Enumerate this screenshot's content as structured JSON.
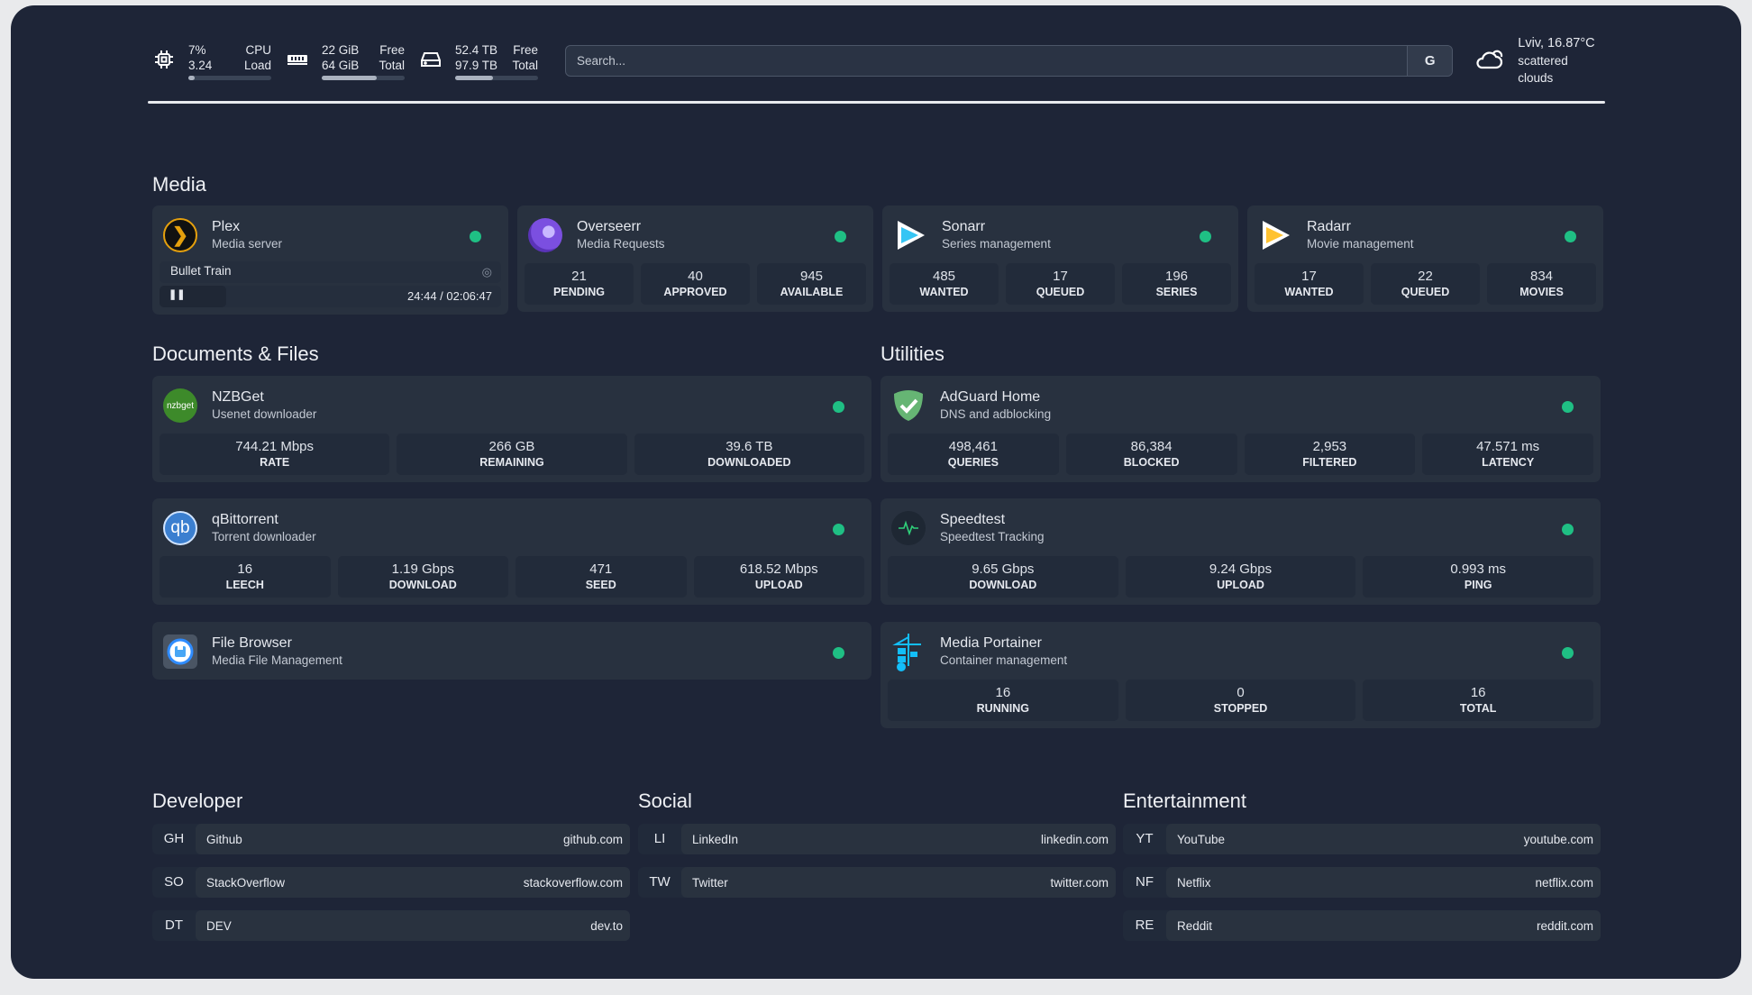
{
  "header": {
    "cpu": {
      "value": "7%",
      "load": "3.24",
      "label1": "CPU",
      "label2": "Load",
      "percent": 7
    },
    "memory": {
      "value": "22 GiB",
      "total": "64 GiB",
      "label1": "Free",
      "label2": "Total",
      "percent": 66
    },
    "disk": {
      "value": "52.4 TB",
      "total": "97.9 TB",
      "label1": "Free",
      "label2": "Total",
      "percent": 46
    },
    "search": {
      "placeholder": "Search...",
      "button": "G"
    },
    "weather": {
      "location": "Lviv, 16.87°C",
      "condition": "scattered clouds"
    }
  },
  "sections": {
    "media": "Media",
    "docs": "Documents & Files",
    "utilities": "Utilities",
    "developer": "Developer",
    "social": "Social",
    "entertainment": "Entertainment"
  },
  "media": [
    {
      "name": "Plex",
      "sub": "Media server",
      "now_playing": "Bullet Train",
      "time": "24:44 / 02:06:47",
      "progress_percent": 19.5
    },
    {
      "name": "Overseerr",
      "sub": "Media Requests",
      "stats": [
        {
          "v": "21",
          "k": "PENDING"
        },
        {
          "v": "40",
          "k": "APPROVED"
        },
        {
          "v": "945",
          "k": "AVAILABLE"
        }
      ]
    },
    {
      "name": "Sonarr",
      "sub": "Series management",
      "stats": [
        {
          "v": "485",
          "k": "WANTED"
        },
        {
          "v": "17",
          "k": "QUEUED"
        },
        {
          "v": "196",
          "k": "SERIES"
        }
      ]
    },
    {
      "name": "Radarr",
      "sub": "Movie management",
      "stats": [
        {
          "v": "17",
          "k": "WANTED"
        },
        {
          "v": "22",
          "k": "QUEUED"
        },
        {
          "v": "834",
          "k": "MOVIES"
        }
      ]
    }
  ],
  "docs": [
    {
      "name": "NZBGet",
      "sub": "Usenet downloader",
      "logo": "nzbget",
      "stats": [
        {
          "v": "744.21 Mbps",
          "k": "RATE"
        },
        {
          "v": "266 GB",
          "k": "REMAINING"
        },
        {
          "v": "39.6 TB",
          "k": "DOWNLOADED"
        }
      ]
    },
    {
      "name": "qBittorrent",
      "sub": "Torrent downloader",
      "logo": "qb",
      "stats": [
        {
          "v": "16",
          "k": "LEECH"
        },
        {
          "v": "1.19 Gbps",
          "k": "DOWNLOAD"
        },
        {
          "v": "471",
          "k": "SEED"
        },
        {
          "v": "618.52 Mbps",
          "k": "UPLOAD"
        }
      ]
    },
    {
      "name": "File Browser",
      "sub": "Media File Management"
    }
  ],
  "utilities": [
    {
      "name": "AdGuard Home",
      "sub": "DNS and adblocking",
      "stats": [
        {
          "v": "498,461",
          "k": "QUERIES"
        },
        {
          "v": "86,384",
          "k": "BLOCKED"
        },
        {
          "v": "2,953",
          "k": "FILTERED"
        },
        {
          "v": "47.571 ms",
          "k": "LATENCY"
        }
      ]
    },
    {
      "name": "Speedtest",
      "sub": "Speedtest Tracking",
      "stats": [
        {
          "v": "9.65 Gbps",
          "k": "DOWNLOAD"
        },
        {
          "v": "9.24 Gbps",
          "k": "UPLOAD"
        },
        {
          "v": "0.993 ms",
          "k": "PING"
        }
      ]
    },
    {
      "name": "Media Portainer",
      "sub": "Container management",
      "stats": [
        {
          "v": "16",
          "k": "RUNNING"
        },
        {
          "v": "0",
          "k": "STOPPED"
        },
        {
          "v": "16",
          "k": "TOTAL"
        }
      ]
    }
  ],
  "developer": [
    {
      "ab": "GH",
      "name": "Github",
      "url": "github.com"
    },
    {
      "ab": "SO",
      "name": "StackOverflow",
      "url": "stackoverflow.com"
    },
    {
      "ab": "DT",
      "name": "DEV",
      "url": "dev.to"
    }
  ],
  "social": [
    {
      "ab": "LI",
      "name": "LinkedIn",
      "url": "linkedin.com"
    },
    {
      "ab": "TW",
      "name": "Twitter",
      "url": "twitter.com"
    }
  ],
  "entertainment": [
    {
      "ab": "YT",
      "name": "YouTube",
      "url": "youtube.com"
    },
    {
      "ab": "NF",
      "name": "Netflix",
      "url": "netflix.com"
    },
    {
      "ab": "RE",
      "name": "Reddit",
      "url": "reddit.com"
    }
  ],
  "colors": {
    "status_online": "#1fbf84",
    "background": "#1e2537",
    "card": "#28313f"
  }
}
